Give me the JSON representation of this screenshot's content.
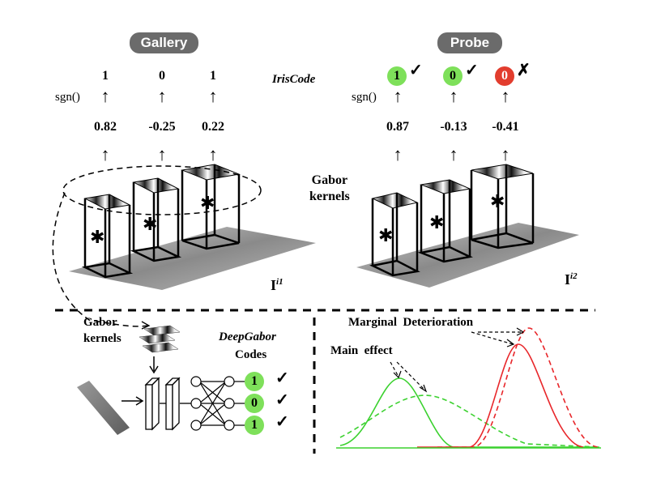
{
  "gallery": {
    "title": "Gallery",
    "bits": [
      "1",
      "0",
      "1"
    ],
    "sgn": "sgn()",
    "responses": [
      "0.82",
      "-0.25",
      "0.22"
    ],
    "image_label": "I",
    "image_sup": "i1"
  },
  "probe": {
    "title": "Probe",
    "bits": [
      "1",
      "0",
      "0"
    ],
    "bit_status": [
      "match",
      "match",
      "mismatch"
    ],
    "marks": [
      "✓",
      "✓",
      "✗"
    ],
    "sgn": "sgn()",
    "responses": [
      "0.87",
      "-0.13",
      "-0.41"
    ],
    "image_label": "I",
    "image_sup": "i2"
  },
  "center": {
    "iriscode": "IrisCode",
    "gabor_kernels_line1": "Gabor",
    "gabor_kernels_line2": "kernels"
  },
  "convolution_symbol": "✱",
  "bottom_left": {
    "kernels_line1": "Gabor",
    "kernels_line2": "kernels",
    "deepgabor": "DeepGabor",
    "codes": "Codes",
    "outputs": [
      "1",
      "0",
      "1"
    ],
    "marks": [
      "✓",
      "✓",
      "✓"
    ]
  },
  "bottom_right": {
    "marginal": "Marginal  Deterioration",
    "main_effect": "Main  effect"
  },
  "colors": {
    "pill": "#6b6b6b",
    "green": "#7ee05a",
    "red": "#e23d2e",
    "curve_green": "#3bd12f",
    "curve_red": "#e8262a"
  }
}
